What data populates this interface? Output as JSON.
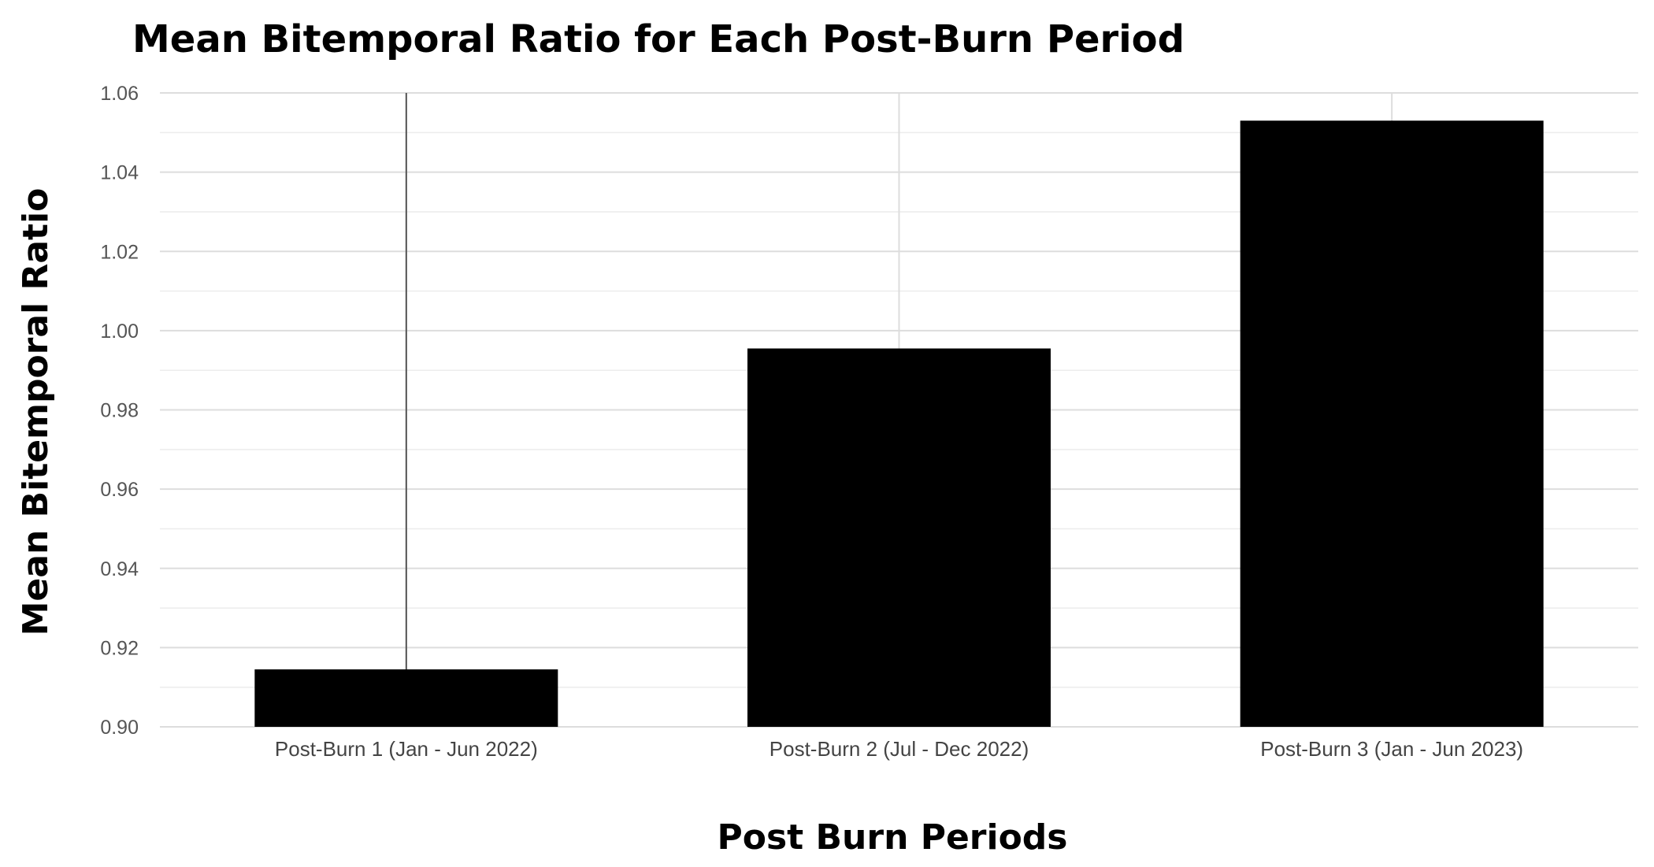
{
  "chart_data": {
    "type": "bar",
    "title": "Mean Bitemporal Ratio for Each Post-Burn Period",
    "xlabel": "Post Burn Periods",
    "ylabel": "Mean Bitemporal Ratio",
    "categories": [
      "Post-Burn 1 (Jan - Jun 2022)",
      "Post-Burn 2 (Jul - Dec 2022)",
      "Post-Burn 3 (Jan - Jun 2023)"
    ],
    "values": [
      0.9145,
      0.9955,
      1.053
    ],
    "error_bar_upper": [
      1.06,
      null,
      null
    ],
    "ylim": [
      0.9,
      1.06
    ],
    "yticks": [
      "0.90",
      "0.92",
      "0.94",
      "0.96",
      "0.98",
      "1.00",
      "1.02",
      "1.04",
      "1.06"
    ],
    "ytick_values": [
      0.9,
      0.92,
      0.94,
      0.96,
      0.98,
      1.0,
      1.02,
      1.04,
      1.06
    ],
    "bar_color": "#000000",
    "grid": true,
    "legend": "none"
  }
}
